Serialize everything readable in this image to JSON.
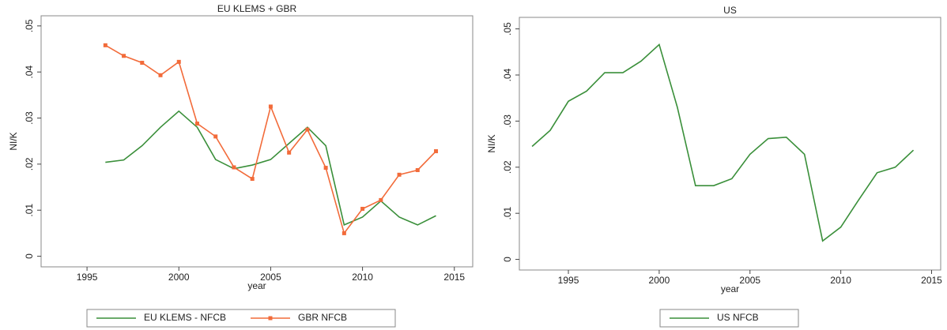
{
  "chart_data": [
    {
      "type": "line",
      "title": "EU KLEMS + GBR",
      "x_label": "year",
      "y_label": "NI/K",
      "x": [
        1996,
        1997,
        1998,
        1999,
        2000,
        2001,
        2002,
        2003,
        2004,
        2005,
        2006,
        2007,
        2008,
        2009,
        2010,
        2011,
        2012,
        2013,
        2014
      ],
      "series": [
        {
          "name": "EU KLEMS - NFCB",
          "color": "#3a8f3a",
          "values": [
            0.0204,
            0.0209,
            0.024,
            0.028,
            0.0315,
            0.028,
            0.021,
            0.019,
            0.0198,
            0.021,
            0.0245,
            0.028,
            0.024,
            0.0068,
            0.0085,
            0.012,
            0.0085,
            0.0068,
            0.0088
          ]
        },
        {
          "name": "GBR NFCB",
          "color": "#f26b3a",
          "marker": "square",
          "values": [
            0.0458,
            0.0435,
            0.042,
            0.0393,
            0.0422,
            0.0288,
            0.026,
            0.0193,
            0.0168,
            0.0325,
            0.0225,
            0.0275,
            0.0192,
            0.005,
            0.0103,
            0.0122,
            0.0177,
            0.0187,
            0.0228
          ]
        }
      ],
      "xlim": [
        1992.5,
        2016
      ],
      "xticks": [
        1995,
        2000,
        2005,
        2010,
        2015
      ],
      "ylim": [
        -0.0023,
        0.0522
      ],
      "yticks": [
        0,
        {
          "value": 0.01,
          "label": ".01"
        },
        {
          "value": 0.02,
          "label": ".02"
        },
        {
          "value": 0.03,
          "label": ".03"
        },
        {
          "value": 0.04,
          "label": ".04"
        },
        {
          "value": 0.05,
          "label": ".05"
        }
      ],
      "legend": "bottom"
    },
    {
      "type": "line",
      "title": "US",
      "x_label": "year",
      "y_label": "NI/K",
      "x": [
        1993,
        1994,
        1995,
        1996,
        1997,
        1998,
        1999,
        2000,
        2001,
        2002,
        2003,
        2004,
        2005,
        2006,
        2007,
        2008,
        2009,
        2010,
        2011,
        2012,
        2013,
        2014
      ],
      "series": [
        {
          "name": "US NFCB",
          "color": "#3a8f3a",
          "values": [
            0.0245,
            0.028,
            0.0343,
            0.0365,
            0.0405,
            0.0405,
            0.043,
            0.0466,
            0.033,
            0.016,
            0.016,
            0.0175,
            0.0228,
            0.0262,
            0.0265,
            0.0228,
            0.004,
            0.007,
            0.013,
            0.0188,
            0.02,
            0.0237
          ]
        }
      ],
      "xlim": [
        1992.3,
        2015.5
      ],
      "xticks": [
        1995,
        2000,
        2005,
        2010,
        2015
      ],
      "ylim": [
        -0.0023,
        0.0525
      ],
      "yticks": [
        0,
        {
          "value": 0.01,
          "label": ".01"
        },
        {
          "value": 0.02,
          "label": ".02"
        },
        {
          "value": 0.03,
          "label": ".03"
        },
        {
          "value": 0.04,
          "label": ".04"
        },
        {
          "value": 0.05,
          "label": ".05"
        }
      ],
      "legend": "bottom"
    }
  ]
}
